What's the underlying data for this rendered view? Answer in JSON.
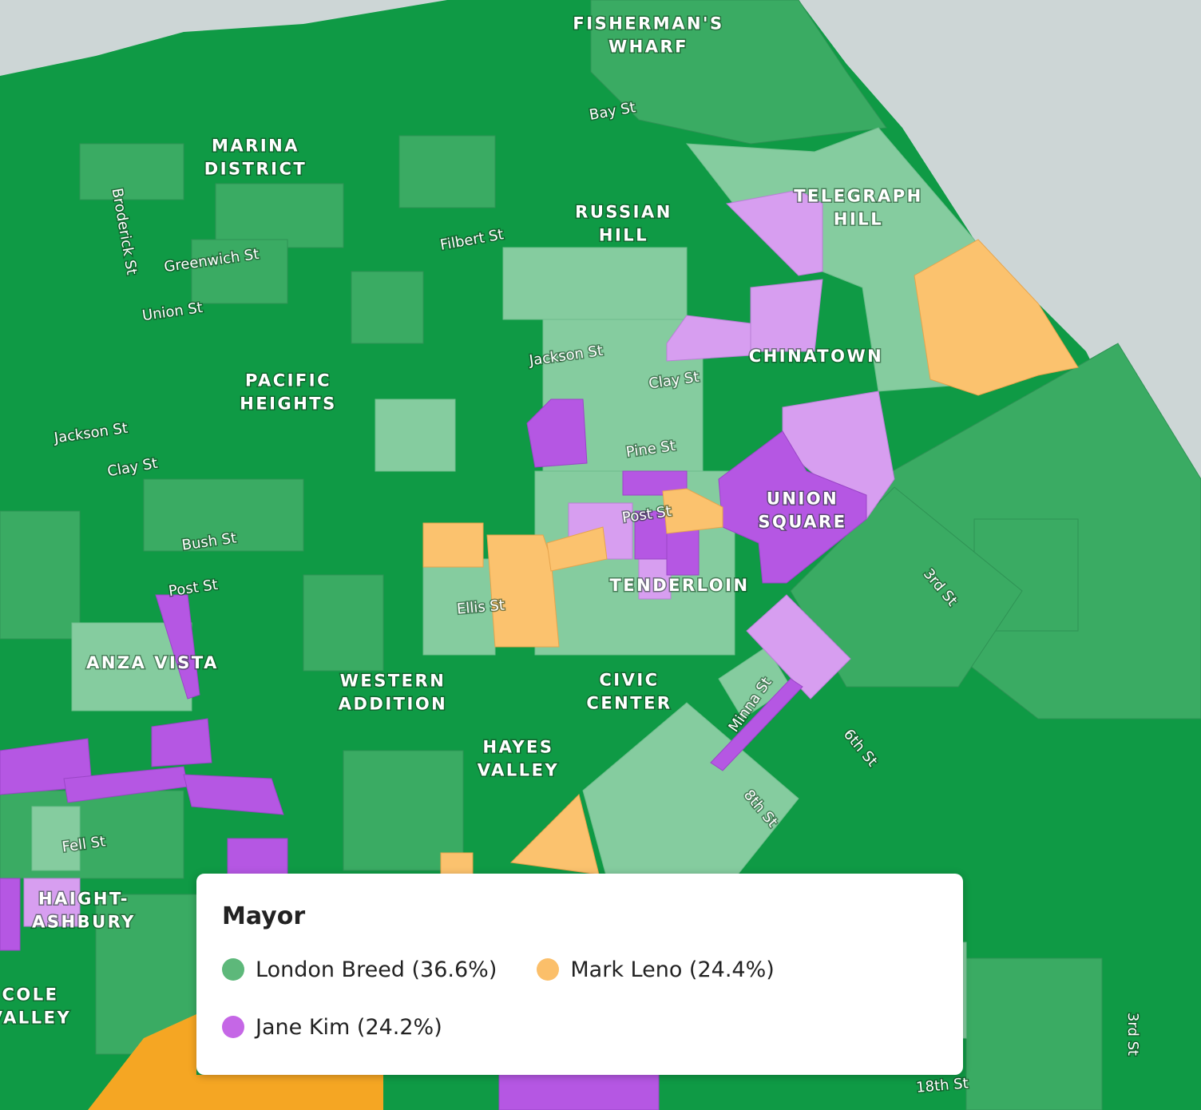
{
  "neighborhoods": [
    {
      "lines": [
        "FISHERMAN'S",
        "WHARF"
      ]
    },
    {
      "lines": [
        "MARINA",
        "DISTRICT"
      ]
    },
    {
      "lines": [
        "RUSSIAN",
        "HILL"
      ]
    },
    {
      "lines": [
        "TELEGRAPH",
        "HILL"
      ]
    },
    {
      "lines": [
        "CHINATOWN"
      ]
    },
    {
      "lines": [
        "PACIFIC",
        "HEIGHTS"
      ]
    },
    {
      "lines": [
        "UNION",
        "SQUARE"
      ]
    },
    {
      "lines": [
        "TENDERLOIN"
      ]
    },
    {
      "lines": [
        "ANZA VISTA"
      ]
    },
    {
      "lines": [
        "WESTERN",
        "ADDITION"
      ]
    },
    {
      "lines": [
        "CIVIC",
        "CENTER"
      ]
    },
    {
      "lines": [
        "HAYES",
        "VALLEY"
      ]
    },
    {
      "lines": [
        "HAIGHT-",
        "ASHBURY"
      ]
    },
    {
      "lines": [
        "COLE",
        "VALLEY"
      ]
    }
  ],
  "streets": [
    "Bay St",
    "Broderick St",
    "Greenwich St",
    "Filbert St",
    "Union St",
    "Jackson St",
    "Jackson St",
    "Clay St",
    "Clay St",
    "Pine St",
    "Post St",
    "Post St",
    "Bush St",
    "Ellis St",
    "Fell St",
    "Minna St",
    "3rd St",
    "3rd St",
    "6th St",
    "8th St",
    "18th St"
  ],
  "legend": {
    "title": "Mayor",
    "items": [
      {
        "label": "London Breed (36.6%)",
        "color": "#5db87a"
      },
      {
        "label": "Mark Leno (24.4%)",
        "color": "#fbbf6a"
      },
      {
        "label": "Jane Kim (24.2%)",
        "color": "#c567e6"
      }
    ]
  }
}
